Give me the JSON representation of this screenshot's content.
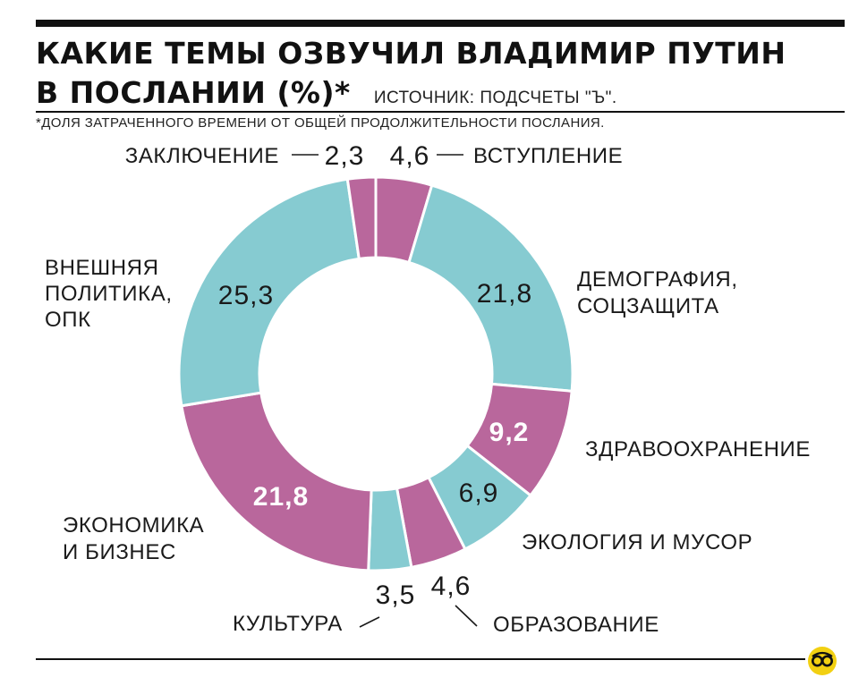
{
  "header": {
    "title_line1": "КАКИЕ ТЕМЫ ОЗВУЧИЛ ВЛАДИМИР ПУТИН",
    "title_line2": "В ПОСЛАНИИ (%)*",
    "source": "ИСТОЧНИК: ПОДСЧЕТЫ \"Ъ\".",
    "footnote": "*ДОЛЯ ЗАТРАЧЕННОГО ВРЕМЕНИ ОТ ОБЩЕЙ ПРОДОЛЖИТЕЛЬНОСТИ ПОСЛАНИЯ."
  },
  "colors": {
    "pink": "#b9679c",
    "teal": "#86cbd1",
    "text": "#1a1a1a"
  },
  "logo_icon": "kommersant-logo-icon",
  "chart_data": {
    "type": "donut",
    "unit": "%",
    "slices": [
      {
        "key": "vstuplenie",
        "label_lines": [
          "ВСТУПЛЕНИЕ"
        ],
        "value": 4.6,
        "value_text": "4,6",
        "color": "pink"
      },
      {
        "key": "demografiya",
        "label_lines": [
          "ДЕМОГРАФИЯ,",
          "СОЦЗАЩИТА"
        ],
        "value": 21.8,
        "value_text": "21,8",
        "color": "teal"
      },
      {
        "key": "zdravoohranenie",
        "label_lines": [
          "ЗДРАВООХРАНЕНИЕ"
        ],
        "value": 9.2,
        "value_text": "9,2",
        "color": "pink"
      },
      {
        "key": "ekologiya",
        "label_lines": [
          "ЭКОЛОГИЯ И МУСОР"
        ],
        "value": 6.9,
        "value_text": "6,9",
        "color": "teal"
      },
      {
        "key": "obrazovanie",
        "label_lines": [
          "ОБРАЗОВАНИЕ"
        ],
        "value": 4.6,
        "value_text": "4,6",
        "color": "pink"
      },
      {
        "key": "kultura",
        "label_lines": [
          "КУЛЬТУРА"
        ],
        "value": 3.5,
        "value_text": "3,5",
        "color": "teal"
      },
      {
        "key": "ekonomika",
        "label_lines": [
          "ЭКОНОМИКА",
          "И БИЗНЕС"
        ],
        "value": 21.8,
        "value_text": "21,8",
        "color": "pink"
      },
      {
        "key": "vneshnyaya",
        "label_lines": [
          "ВНЕШНЯЯ",
          "ПОЛИТИКА,",
          "ОПК"
        ],
        "value": 25.3,
        "value_text": "25,3",
        "color": "teal"
      },
      {
        "key": "zaklyuchenie",
        "label_lines": [
          "ЗАКЛЮЧЕНИЕ"
        ],
        "value": 2.3,
        "value_text": "2,3",
        "color": "pink"
      }
    ]
  }
}
